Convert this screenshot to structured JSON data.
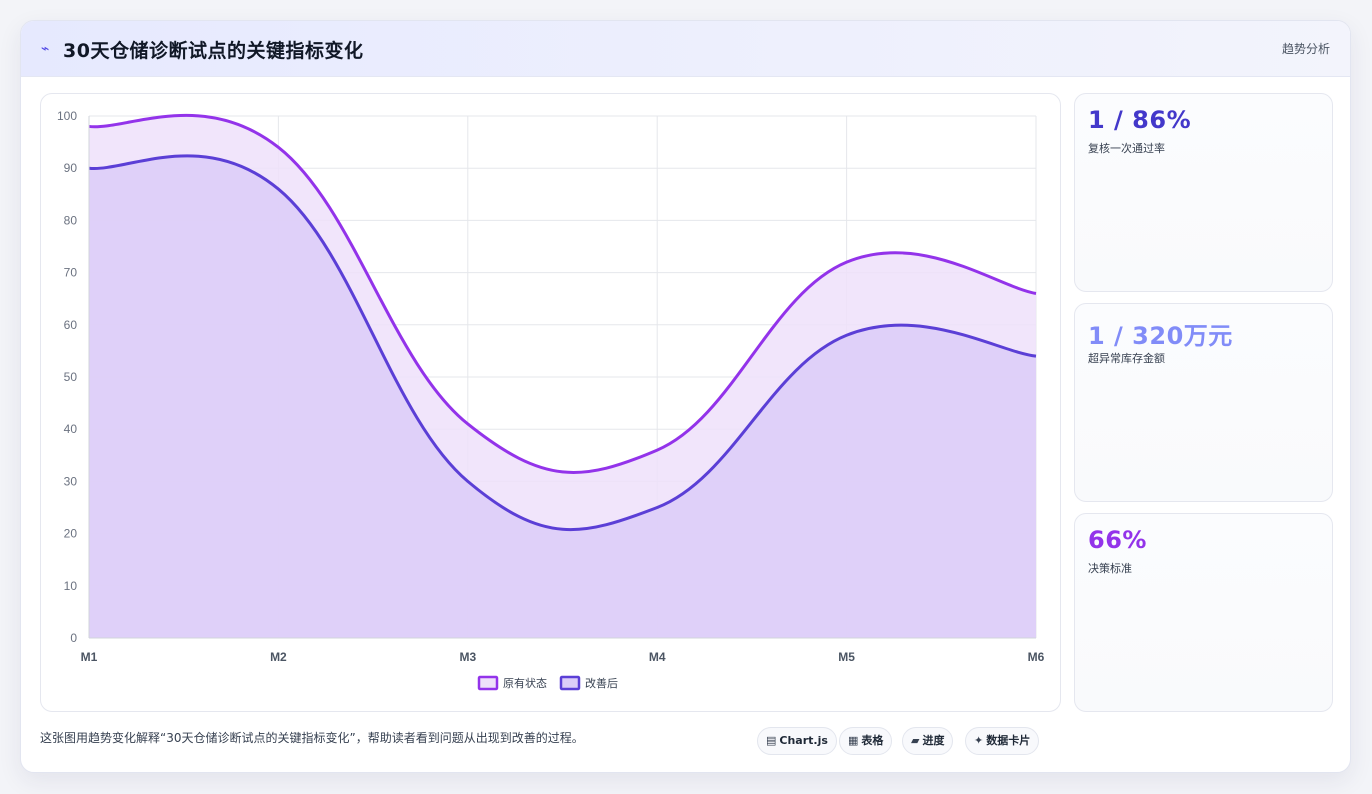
{
  "header": {
    "icon": "chart-trend-icon",
    "title": "30天仓储诊断试点的关键指标变化",
    "tag": "趋势分析"
  },
  "chart_data": {
    "type": "area",
    "categories": [
      "M1",
      "M2",
      "M3",
      "M4",
      "M5",
      "M6"
    ],
    "series": [
      {
        "name": "原有状态",
        "values": [
          98,
          94,
          41,
          36,
          72,
          66
        ],
        "color": "#9333ea",
        "fill": "#eee0fa"
      },
      {
        "name": "改善后",
        "values": [
          90,
          86,
          30,
          25,
          58,
          54
        ],
        "color": "#5b3fd6",
        "fill": "#dccdf8"
      }
    ],
    "ylim": [
      0,
      100
    ],
    "yticks": [
      0,
      10,
      20,
      30,
      40,
      50,
      60,
      70,
      80,
      90,
      100
    ],
    "grid": true,
    "legend": "bottom"
  },
  "side_cards": [
    {
      "value": "1 / 86%",
      "label": "复核一次通过率",
      "color": "#4338ca"
    },
    {
      "value": "1 / 320万元",
      "label": "超异常库存金额",
      "color": "#818cf8"
    },
    {
      "value": "66%",
      "label": "决策标准",
      "color": "#9333ea"
    }
  ],
  "footer": {
    "caption": "这张图用趋势变化解释“30天仓储诊断试点的关键指标变化”，帮助读者看到问题从出现到改善的过程。",
    "pills": [
      {
        "icon": "▤",
        "icon_name": "chartjs-icon",
        "label": "Chart.js"
      },
      {
        "icon": "▦",
        "icon_name": "table-icon",
        "label": "表格"
      },
      {
        "icon": "▰",
        "icon_name": "progress-icon",
        "label": "进度"
      },
      {
        "icon": "✦",
        "icon_name": "data-card-icon",
        "label": "数据卡片"
      }
    ]
  }
}
